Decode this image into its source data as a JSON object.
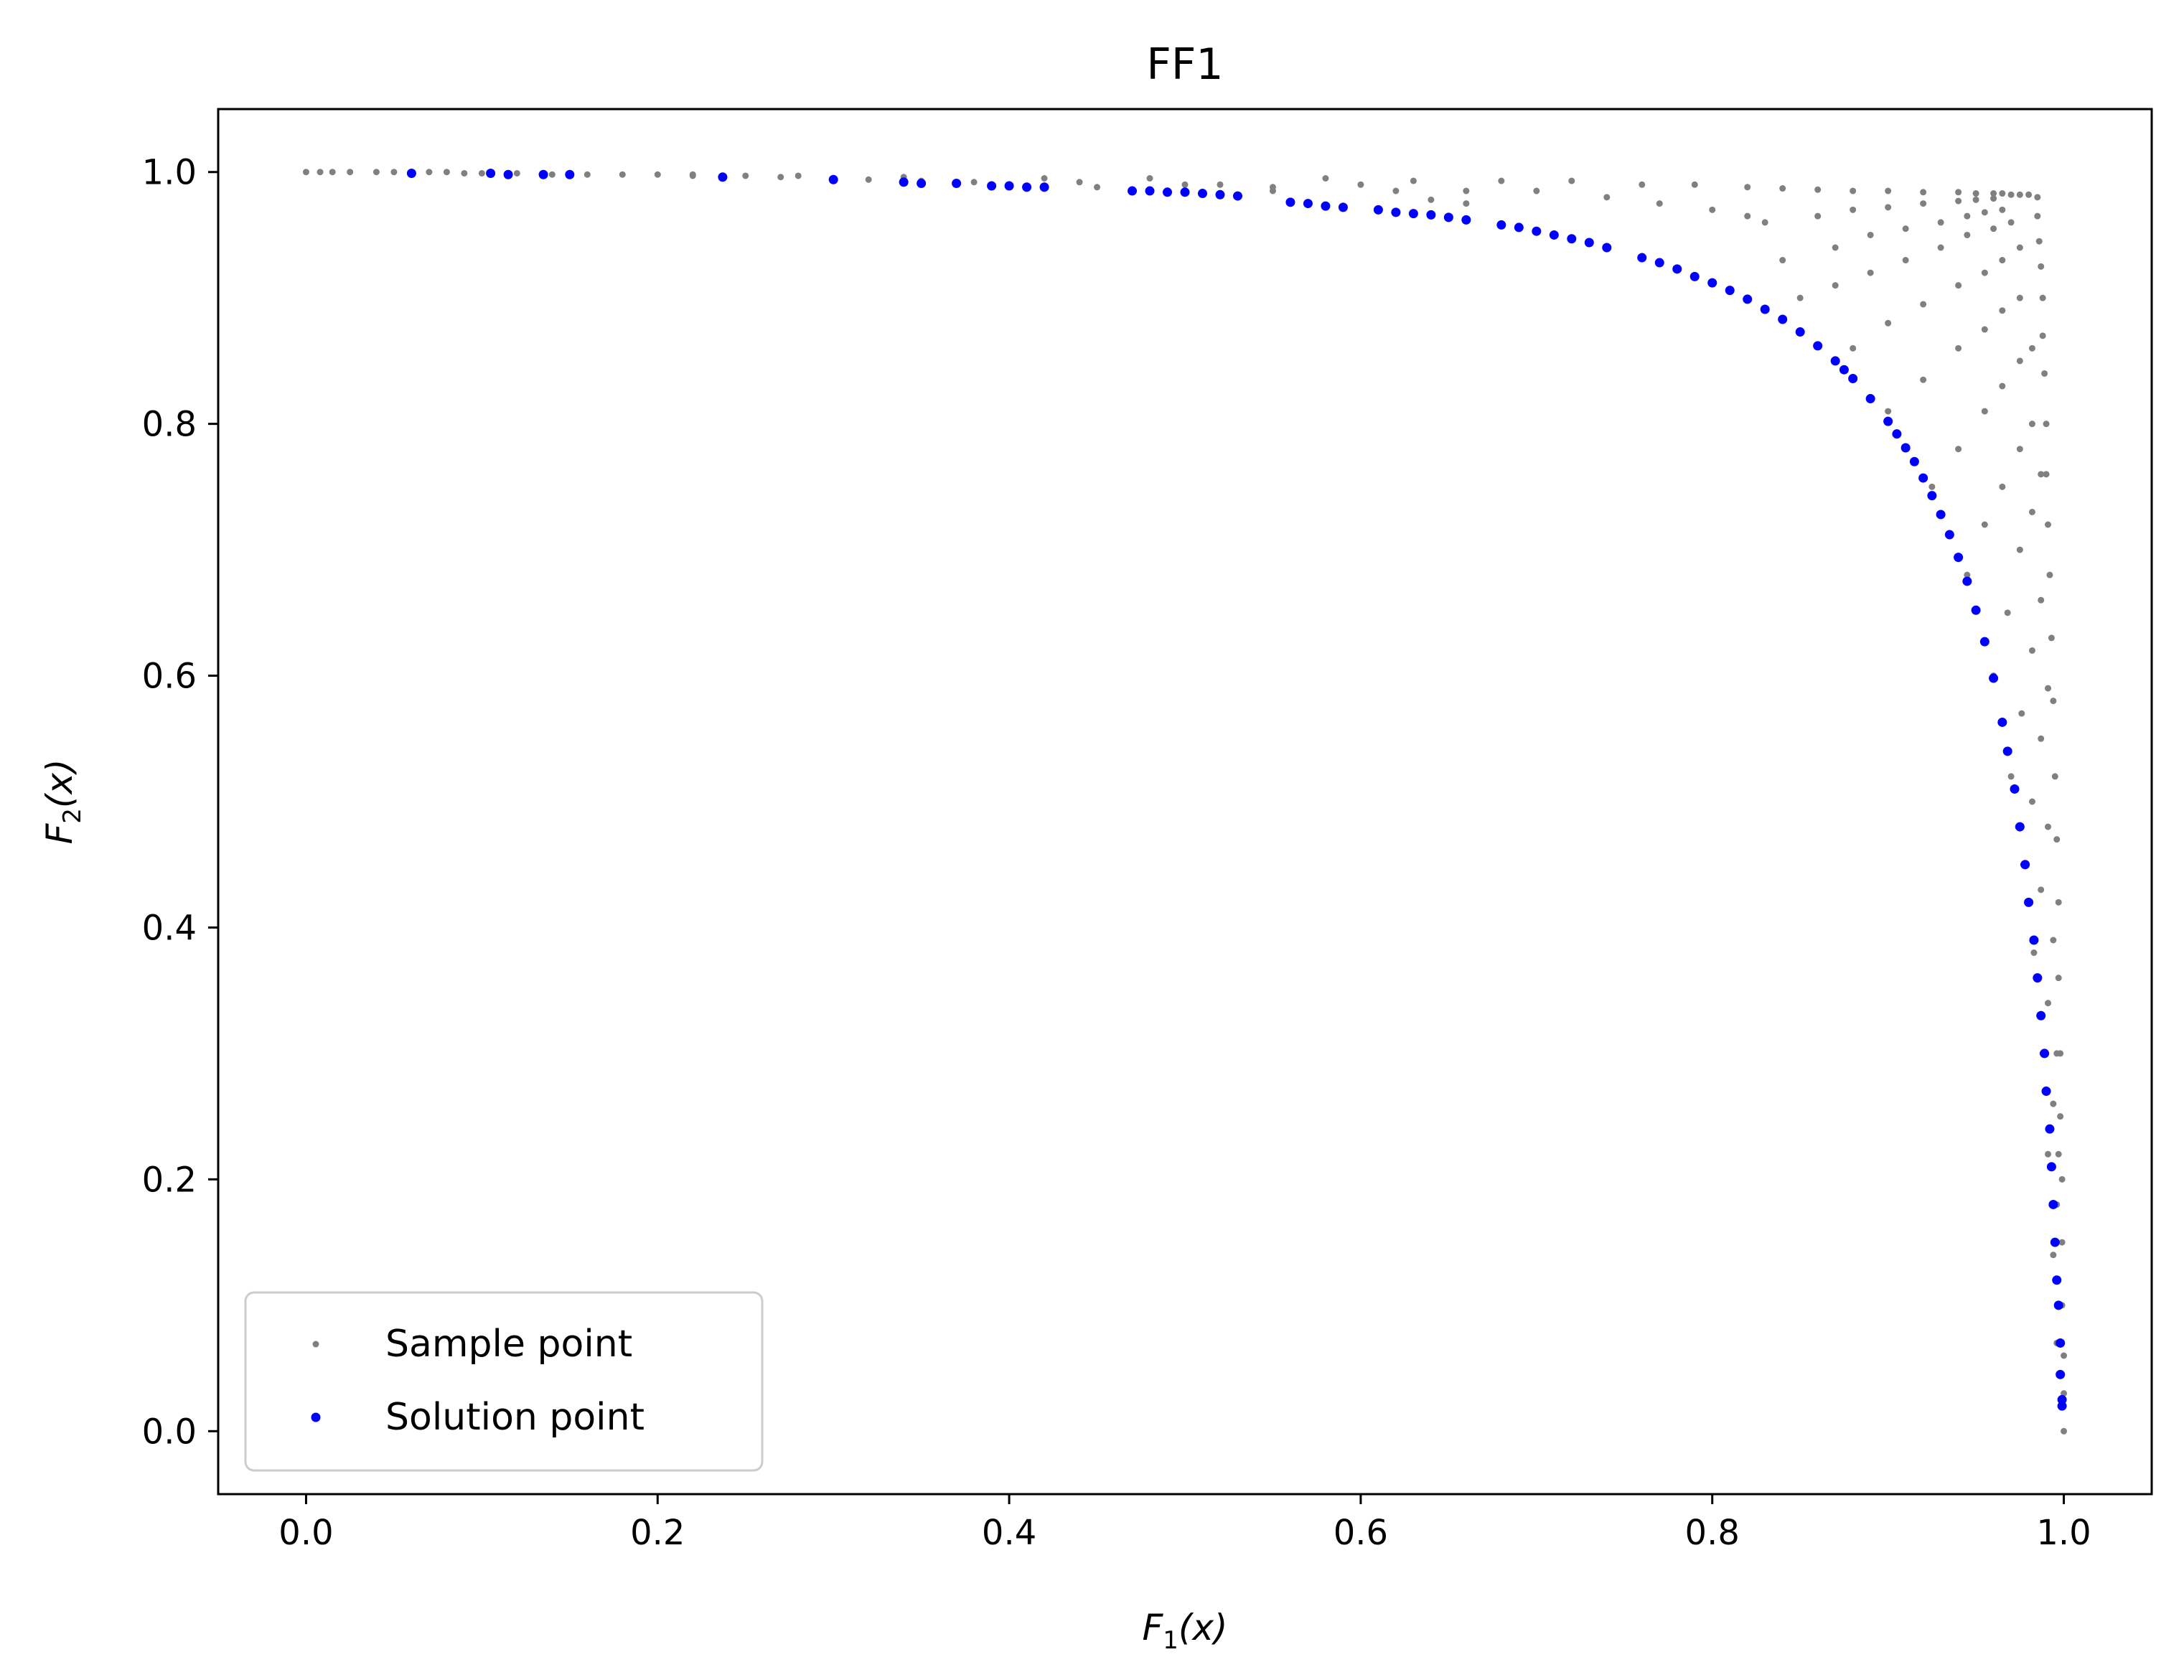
{
  "chart_data": {
    "type": "scatter",
    "title": "FF1",
    "xlabel": {
      "base": "F",
      "sub": "1",
      "rest": "(x)"
    },
    "ylabel": {
      "base": "F",
      "sub": "2",
      "rest": "(x)"
    },
    "xlim": [
      -0.05,
      1.05
    ],
    "ylim": [
      -0.05,
      1.05
    ],
    "xticks": [
      0.0,
      0.2,
      0.4,
      0.6,
      0.8,
      1.0
    ],
    "yticks": [
      0.0,
      0.2,
      0.4,
      0.6,
      0.8,
      1.0
    ],
    "xtick_labels": [
      "0.0",
      "0.2",
      "0.4",
      "0.6",
      "0.8",
      "1.0"
    ],
    "ytick_labels": [
      "0.0",
      "0.2",
      "0.4",
      "0.6",
      "0.8",
      "1.0"
    ],
    "grid": false,
    "legend_position": "lower-left",
    "series": [
      {
        "name": "Sample point",
        "color": "#808080",
        "points": [
          [
            0.0,
            1.0
          ],
          [
            0.008,
            1.0
          ],
          [
            0.015,
            1.0
          ],
          [
            0.025,
            1.0
          ],
          [
            0.04,
            1.0
          ],
          [
            0.05,
            1.0
          ],
          [
            0.07,
            1.0
          ],
          [
            0.08,
            1.0
          ],
          [
            0.09,
            0.999
          ],
          [
            0.1,
            0.999
          ],
          [
            0.12,
            0.999
          ],
          [
            0.14,
            0.998
          ],
          [
            0.16,
            0.998
          ],
          [
            0.18,
            0.998
          ],
          [
            0.2,
            0.998
          ],
          [
            0.22,
            0.997
          ],
          [
            0.25,
            0.997
          ],
          [
            0.27,
            0.996
          ],
          [
            0.3,
            0.995
          ],
          [
            0.32,
            0.994
          ],
          [
            0.35,
            0.993
          ],
          [
            0.38,
            0.992
          ],
          [
            0.4,
            0.99
          ],
          [
            0.42,
            0.995
          ],
          [
            0.45,
            0.988
          ],
          [
            0.48,
            0.995
          ],
          [
            0.5,
            0.99
          ],
          [
            0.55,
            0.988
          ],
          [
            0.58,
            0.995
          ],
          [
            0.6,
            0.99
          ],
          [
            0.63,
            0.993
          ],
          [
            0.66,
            0.985
          ],
          [
            0.68,
            0.993
          ],
          [
            0.72,
            0.993
          ],
          [
            0.76,
            0.99
          ],
          [
            0.79,
            0.99
          ],
          [
            0.82,
            0.988
          ],
          [
            0.84,
            0.987
          ],
          [
            0.86,
            0.986
          ],
          [
            0.88,
            0.985
          ],
          [
            0.9,
            0.985
          ],
          [
            0.92,
            0.984
          ],
          [
            0.94,
            0.984
          ],
          [
            0.95,
            0.983
          ],
          [
            0.96,
            0.983
          ],
          [
            0.965,
            0.983
          ],
          [
            0.97,
            0.982
          ],
          [
            0.975,
            0.982
          ],
          [
            0.98,
            0.982
          ],
          [
            0.985,
            0.98
          ],
          [
            0.985,
            0.965
          ],
          [
            0.986,
            0.945
          ],
          [
            0.987,
            0.925
          ],
          [
            0.988,
            0.9
          ],
          [
            0.988,
            0.87
          ],
          [
            0.989,
            0.84
          ],
          [
            0.99,
            0.8
          ],
          [
            0.99,
            0.76
          ],
          [
            0.991,
            0.72
          ],
          [
            0.992,
            0.68
          ],
          [
            0.993,
            0.63
          ],
          [
            0.994,
            0.58
          ],
          [
            0.995,
            0.52
          ],
          [
            0.996,
            0.47
          ],
          [
            0.997,
            0.42
          ],
          [
            0.997,
            0.36
          ],
          [
            0.998,
            0.3
          ],
          [
            0.998,
            0.25
          ],
          [
            0.999,
            0.2
          ],
          [
            0.999,
            0.15
          ],
          [
            0.999,
            0.1
          ],
          [
            1.0,
            0.06
          ],
          [
            1.0,
            0.03
          ],
          [
            1.0,
            0.0
          ],
          [
            0.83,
            0.96
          ],
          [
            0.86,
            0.965
          ],
          [
            0.88,
            0.97
          ],
          [
            0.9,
            0.972
          ],
          [
            0.92,
            0.975
          ],
          [
            0.94,
            0.977
          ],
          [
            0.95,
            0.978
          ],
          [
            0.96,
            0.979
          ],
          [
            0.84,
            0.93
          ],
          [
            0.87,
            0.94
          ],
          [
            0.89,
            0.95
          ],
          [
            0.91,
            0.955
          ],
          [
            0.93,
            0.96
          ],
          [
            0.945,
            0.965
          ],
          [
            0.955,
            0.968
          ],
          [
            0.965,
            0.97
          ],
          [
            0.85,
            0.9
          ],
          [
            0.87,
            0.91
          ],
          [
            0.89,
            0.92
          ],
          [
            0.91,
            0.93
          ],
          [
            0.93,
            0.94
          ],
          [
            0.945,
            0.95
          ],
          [
            0.96,
            0.955
          ],
          [
            0.97,
            0.96
          ],
          [
            0.88,
            0.86
          ],
          [
            0.9,
            0.88
          ],
          [
            0.92,
            0.895
          ],
          [
            0.94,
            0.91
          ],
          [
            0.955,
            0.92
          ],
          [
            0.965,
            0.93
          ],
          [
            0.975,
            0.94
          ],
          [
            0.9,
            0.81
          ],
          [
            0.92,
            0.835
          ],
          [
            0.94,
            0.86
          ],
          [
            0.955,
            0.875
          ],
          [
            0.965,
            0.89
          ],
          [
            0.975,
            0.9
          ],
          [
            0.925,
            0.75
          ],
          [
            0.94,
            0.78
          ],
          [
            0.955,
            0.81
          ],
          [
            0.965,
            0.83
          ],
          [
            0.975,
            0.85
          ],
          [
            0.982,
            0.86
          ],
          [
            0.945,
            0.68
          ],
          [
            0.955,
            0.72
          ],
          [
            0.965,
            0.75
          ],
          [
            0.975,
            0.78
          ],
          [
            0.982,
            0.8
          ],
          [
            0.96,
            0.6
          ],
          [
            0.968,
            0.65
          ],
          [
            0.975,
            0.7
          ],
          [
            0.982,
            0.73
          ],
          [
            0.987,
            0.76
          ],
          [
            0.97,
            0.52
          ],
          [
            0.976,
            0.57
          ],
          [
            0.982,
            0.62
          ],
          [
            0.987,
            0.66
          ],
          [
            0.977,
            0.45
          ],
          [
            0.982,
            0.5
          ],
          [
            0.987,
            0.55
          ],
          [
            0.991,
            0.59
          ],
          [
            0.983,
            0.38
          ],
          [
            0.987,
            0.43
          ],
          [
            0.991,
            0.48
          ],
          [
            0.988,
            0.3
          ],
          [
            0.991,
            0.34
          ],
          [
            0.994,
            0.39
          ],
          [
            0.991,
            0.22
          ],
          [
            0.994,
            0.26
          ],
          [
            0.996,
            0.3
          ],
          [
            0.994,
            0.14
          ],
          [
            0.996,
            0.18
          ],
          [
            0.997,
            0.22
          ],
          [
            0.996,
            0.07
          ],
          [
            0.998,
            0.1
          ],
          [
            0.7,
            0.985
          ],
          [
            0.74,
            0.98
          ],
          [
            0.77,
            0.975
          ],
          [
            0.8,
            0.97
          ],
          [
            0.82,
            0.965
          ],
          [
            0.62,
            0.985
          ],
          [
            0.64,
            0.978
          ],
          [
            0.66,
            0.975
          ],
          [
            0.52,
            0.99
          ],
          [
            0.55,
            0.985
          ],
          [
            0.44,
            0.992
          ],
          [
            0.34,
            0.996
          ],
          [
            0.28,
            0.997
          ],
          [
            0.22,
            0.998
          ]
        ]
      },
      {
        "name": "Solution point",
        "color": "#0000ff",
        "points": [
          [
            0.06,
            0.999
          ],
          [
            0.105,
            0.999
          ],
          [
            0.115,
            0.998
          ],
          [
            0.135,
            0.998
          ],
          [
            0.15,
            0.998
          ],
          [
            0.237,
            0.996
          ],
          [
            0.3,
            0.994
          ],
          [
            0.34,
            0.992
          ],
          [
            0.35,
            0.991
          ],
          [
            0.37,
            0.991
          ],
          [
            0.39,
            0.989
          ],
          [
            0.4,
            0.989
          ],
          [
            0.41,
            0.988
          ],
          [
            0.42,
            0.988
          ],
          [
            0.47,
            0.985
          ],
          [
            0.48,
            0.985
          ],
          [
            0.49,
            0.984
          ],
          [
            0.5,
            0.984
          ],
          [
            0.51,
            0.983
          ],
          [
            0.52,
            0.982
          ],
          [
            0.53,
            0.981
          ],
          [
            0.56,
            0.976
          ],
          [
            0.57,
            0.975
          ],
          [
            0.58,
            0.973
          ],
          [
            0.59,
            0.972
          ],
          [
            0.61,
            0.97
          ],
          [
            0.62,
            0.968
          ],
          [
            0.63,
            0.967
          ],
          [
            0.64,
            0.966
          ],
          [
            0.65,
            0.964
          ],
          [
            0.66,
            0.962
          ],
          [
            0.68,
            0.958
          ],
          [
            0.69,
            0.956
          ],
          [
            0.7,
            0.953
          ],
          [
            0.71,
            0.95
          ],
          [
            0.72,
            0.947
          ],
          [
            0.73,
            0.944
          ],
          [
            0.74,
            0.94
          ],
          [
            0.76,
            0.932
          ],
          [
            0.77,
            0.928
          ],
          [
            0.78,
            0.923
          ],
          [
            0.79,
            0.917
          ],
          [
            0.8,
            0.912
          ],
          [
            0.81,
            0.906
          ],
          [
            0.82,
            0.899
          ],
          [
            0.83,
            0.891
          ],
          [
            0.84,
            0.883
          ],
          [
            0.85,
            0.873
          ],
          [
            0.86,
            0.862
          ],
          [
            0.87,
            0.85
          ],
          [
            0.875,
            0.843
          ],
          [
            0.88,
            0.836
          ],
          [
            0.89,
            0.82
          ],
          [
            0.9,
            0.802
          ],
          [
            0.905,
            0.792
          ],
          [
            0.91,
            0.781
          ],
          [
            0.915,
            0.77
          ],
          [
            0.92,
            0.757
          ],
          [
            0.925,
            0.743
          ],
          [
            0.93,
            0.728
          ],
          [
            0.935,
            0.712
          ],
          [
            0.94,
            0.694
          ],
          [
            0.945,
            0.675
          ],
          [
            0.95,
            0.652
          ],
          [
            0.955,
            0.627
          ],
          [
            0.96,
            0.598
          ],
          [
            0.965,
            0.563
          ],
          [
            0.968,
            0.54
          ],
          [
            0.972,
            0.51
          ],
          [
            0.975,
            0.48
          ],
          [
            0.978,
            0.45
          ],
          [
            0.98,
            0.42
          ],
          [
            0.983,
            0.39
          ],
          [
            0.985,
            0.36
          ],
          [
            0.987,
            0.33
          ],
          [
            0.989,
            0.3
          ],
          [
            0.99,
            0.27
          ],
          [
            0.992,
            0.24
          ],
          [
            0.993,
            0.21
          ],
          [
            0.994,
            0.18
          ],
          [
            0.995,
            0.15
          ],
          [
            0.996,
            0.12
          ],
          [
            0.997,
            0.1
          ],
          [
            0.998,
            0.07
          ],
          [
            0.998,
            0.045
          ],
          [
            0.999,
            0.025
          ],
          [
            0.999,
            0.02
          ]
        ]
      }
    ]
  }
}
